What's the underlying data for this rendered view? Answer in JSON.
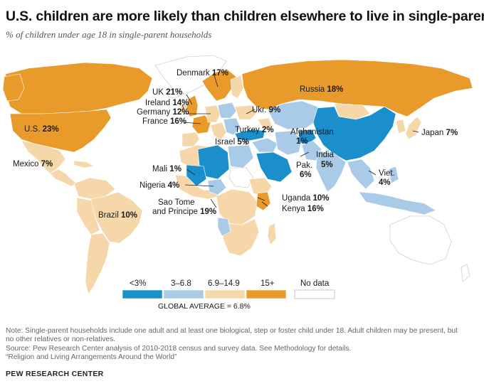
{
  "title": "U.S. children are more likely than children elsewhere to live in single-parent homes",
  "subtitle": "% of children under age 18 in single-parent households",
  "colors": {
    "lt3": "#1a8fcc",
    "b3_6_8": "#a9cbe8",
    "b6_9_14_9": "#f5d7aa",
    "b15plus": "#e89a2b",
    "nodata": "#ffffff",
    "border": "#ffffff",
    "coast": "#cfcfcf"
  },
  "legend": {
    "items": [
      {
        "label": "<3%",
        "color_key": "lt3"
      },
      {
        "label": "3–6.8",
        "color_key": "b3_6_8"
      },
      {
        "label": "6.9–14.9",
        "color_key": "b6_9_14_9"
      },
      {
        "label": "15+",
        "color_key": "b15plus"
      },
      {
        "label": "No data",
        "color_key": "nodata"
      }
    ],
    "global_average": "GLOBAL AVERAGE = 6.8%"
  },
  "countries": [
    {
      "name": "U.S.",
      "value": "23%",
      "category": "15+"
    },
    {
      "name": "Mexico",
      "value": "7%",
      "category": "6.9–14.9"
    },
    {
      "name": "Brazil",
      "value": "10%",
      "category": "6.9–14.9"
    },
    {
      "name": "Denmark",
      "value": "17%",
      "category": "15+"
    },
    {
      "name": "UK",
      "value": "21%",
      "category": "15+"
    },
    {
      "name": "Ireland",
      "value": "14%",
      "category": "6.9–14.9"
    },
    {
      "name": "Germany",
      "value": "12%",
      "category": "6.9–14.9"
    },
    {
      "name": "France",
      "value": "16%",
      "category": "15+"
    },
    {
      "name": "Ukr.",
      "value": "9%",
      "category": "6.9–14.9"
    },
    {
      "name": "Turkey",
      "value": "2%",
      "category": "<3%"
    },
    {
      "name": "Israel",
      "value": "5%",
      "category": "3–6.8"
    },
    {
      "name": "Russia",
      "value": "18%",
      "category": "15+"
    },
    {
      "name": "Afghanistan",
      "value": "1%",
      "category": "<3%"
    },
    {
      "name": "Pak.",
      "value": "6%",
      "category": "3–6.8"
    },
    {
      "name": "India",
      "value": "5%",
      "category": "3–6.8"
    },
    {
      "name": "Japan",
      "value": "7%",
      "category": "6.9–14.9"
    },
    {
      "name": "Viet.",
      "value": "4%",
      "category": "3–6.8"
    },
    {
      "name": "Mali",
      "value": "1%",
      "category": "<3%"
    },
    {
      "name": "Nigeria",
      "value": "4%",
      "category": "3–6.8"
    },
    {
      "name": "Sao Tome and Principe",
      "value": "19%",
      "category": "15+"
    },
    {
      "name": "Uganda",
      "value": "10%",
      "category": "6.9–14.9"
    },
    {
      "name": "Kenya",
      "value": "16%",
      "category": "15+"
    }
  ],
  "labels": {
    "us": {
      "name": "U.S.",
      "value": "23%"
    },
    "mexico": {
      "name": "Mexico",
      "value": "7%"
    },
    "brazil": {
      "name": "Brazil",
      "value": "10%"
    },
    "denmark": {
      "name": "Denmark",
      "value": "17%"
    },
    "uk": {
      "name": "UK",
      "value": "21%"
    },
    "ireland": {
      "name": "Ireland",
      "value": "14%"
    },
    "germany": {
      "name": "Germany",
      "value": "12%"
    },
    "france": {
      "name": "France",
      "value": "16%"
    },
    "ukraine": {
      "name": "Ukr.",
      "value": "9%"
    },
    "turkey": {
      "name": "Turkey",
      "value": "2%"
    },
    "israel": {
      "name": "Israel",
      "value": "5%"
    },
    "russia": {
      "name": "Russia",
      "value": "18%"
    },
    "afghanistan": {
      "name": "Afghanistan",
      "value": "1%"
    },
    "pakistan": {
      "name": "Pak.",
      "value": "6%"
    },
    "india": {
      "name": "India",
      "value": "5%"
    },
    "japan": {
      "name": "Japan",
      "value": "7%"
    },
    "vietnam": {
      "name": "Viet.",
      "value": "4%"
    },
    "mali": {
      "name": "Mali",
      "value": "1%"
    },
    "nigeria": {
      "name": "Nigeria",
      "value": "4%"
    },
    "saotome": {
      "name1": "Sao Tome",
      "name2": "and Principe",
      "value": "19%"
    },
    "uganda": {
      "name": "Uganda",
      "value": "10%"
    },
    "kenya": {
      "name": "Kenya",
      "value": "16%"
    }
  },
  "notes": [
    "Note: Single-parent households include one adult and at least one biological, step or foster child under 18. Adult children may be present, but",
    "no other relatives or non-relatives.",
    "Source: Pew Research Center analysis of 2010-2018 census and survey data. See Methodology for details.",
    "“Religion and Living Arrangements Around the World”"
  ],
  "brand": "PEW RESEARCH CENTER"
}
